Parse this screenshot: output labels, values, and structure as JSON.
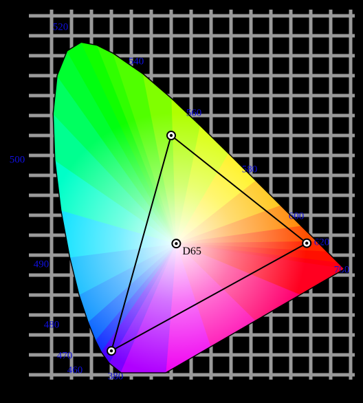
{
  "wavelength_labels": [
    "520",
    "540",
    "560",
    "580",
    "600",
    "620",
    "700",
    "500",
    "490",
    "480",
    "470",
    "460",
    "380"
  ],
  "white_point": {
    "label": "D65"
  }
}
